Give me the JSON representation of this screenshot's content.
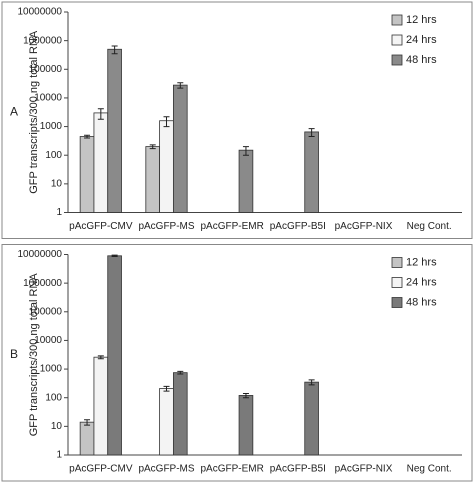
{
  "chart_data": [
    {
      "type": "bar",
      "panel": "A",
      "y_label": "GFP transcripts/300 ng total RNA",
      "log_scale": true,
      "categories": [
        "pAcGFP-CMV",
        "pAcGFP-MS",
        "pAcGFP-EMR",
        "pAcGFP-B5I",
        "pAcGFP-NIX",
        "Neg Cont."
      ],
      "series": [
        {
          "name": "12 hrs",
          "color": "#c4c4c4",
          "values": [
            450,
            200,
            null,
            null,
            null,
            null
          ],
          "errors": [
            50,
            30,
            null,
            null,
            null,
            null
          ]
        },
        {
          "name": "24 hrs",
          "color": "#f4f4f4",
          "values": [
            3000,
            1600,
            null,
            null,
            null,
            null
          ],
          "errors": [
            1200,
            600,
            null,
            null,
            null,
            null
          ]
        },
        {
          "name": "48 hrs",
          "color": "#8a8a8a",
          "values": [
            500000,
            28000,
            150,
            650,
            null,
            null
          ],
          "errors": [
            150000,
            6000,
            50,
            200,
            null,
            null
          ]
        }
      ],
      "ylim": [
        1,
        10000000
      ],
      "yticks": [
        1,
        10,
        100,
        1000,
        10000,
        100000,
        1000000,
        10000000
      ],
      "legend": "top-right"
    },
    {
      "type": "bar",
      "panel": "B",
      "y_label": "GFP transcripts/300 ng total RNA",
      "log_scale": true,
      "categories": [
        "pAcGFP-CMV",
        "pAcGFP-MS",
        "pAcGFP-EMR",
        "pAcGFP-B5I",
        "pAcGFP-NIX",
        "Neg Cont."
      ],
      "series": [
        {
          "name": "12 hrs",
          "color": "#c4c4c4",
          "values": [
            14,
            null,
            null,
            null,
            null,
            null
          ],
          "errors": [
            3,
            null,
            null,
            null,
            null,
            null
          ]
        },
        {
          "name": "24 hrs",
          "color": "#f4f4f4",
          "values": [
            2600,
            210,
            null,
            null,
            null,
            null
          ],
          "errors": [
            300,
            40,
            null,
            null,
            null,
            null
          ]
        },
        {
          "name": "48 hrs",
          "color": "#7a7a7a",
          "values": [
            9000000,
            750,
            120,
            350,
            null,
            null
          ],
          "errors": [
            500000,
            80,
            20,
            70,
            null,
            null
          ]
        }
      ],
      "ylim": [
        1,
        10000000
      ],
      "yticks": [
        1,
        10,
        100,
        1000,
        10000,
        100000,
        1000000,
        10000000
      ],
      "legend": "top-right"
    }
  ]
}
